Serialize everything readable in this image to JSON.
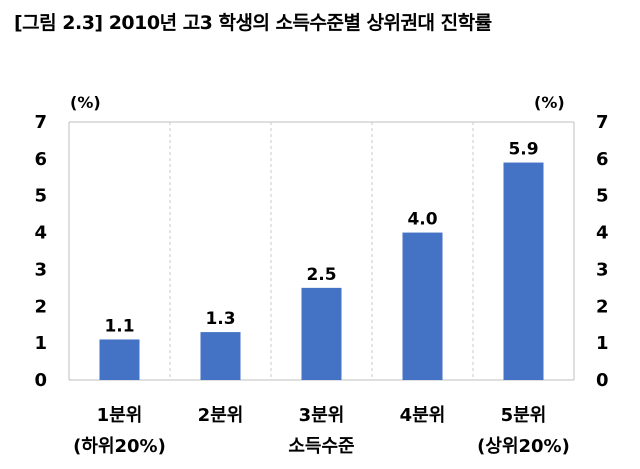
{
  "title": "[그림 2.3] 2010년 고3 학생의 소득수준별 상위권대 진학률",
  "chart_data": {
    "type": "bar",
    "title": "[그림 2.3] 2010년 고3 학생의 소득수준별 상위권대 진학률",
    "categories": [
      [
        "1분위",
        "(하위20%)"
      ],
      [
        "2분위"
      ],
      [
        "3분위",
        "소득수준"
      ],
      [
        "4분위"
      ],
      [
        "5분위",
        "(상위20%)"
      ]
    ],
    "values": [
      1.1,
      1.3,
      2.5,
      4.0,
      5.9
    ],
    "value_labels": [
      "1.1",
      "1.3",
      "2.5",
      "4.0",
      "5.9"
    ],
    "ylim": [
      0,
      7
    ],
    "yticks": [
      "0",
      "1",
      "2",
      "3",
      "4",
      "5",
      "6",
      "7"
    ],
    "y_unit_left": "(%)",
    "y_unit_right": "(%)",
    "grid": "vertical",
    "bar_color": "#4472C4"
  }
}
